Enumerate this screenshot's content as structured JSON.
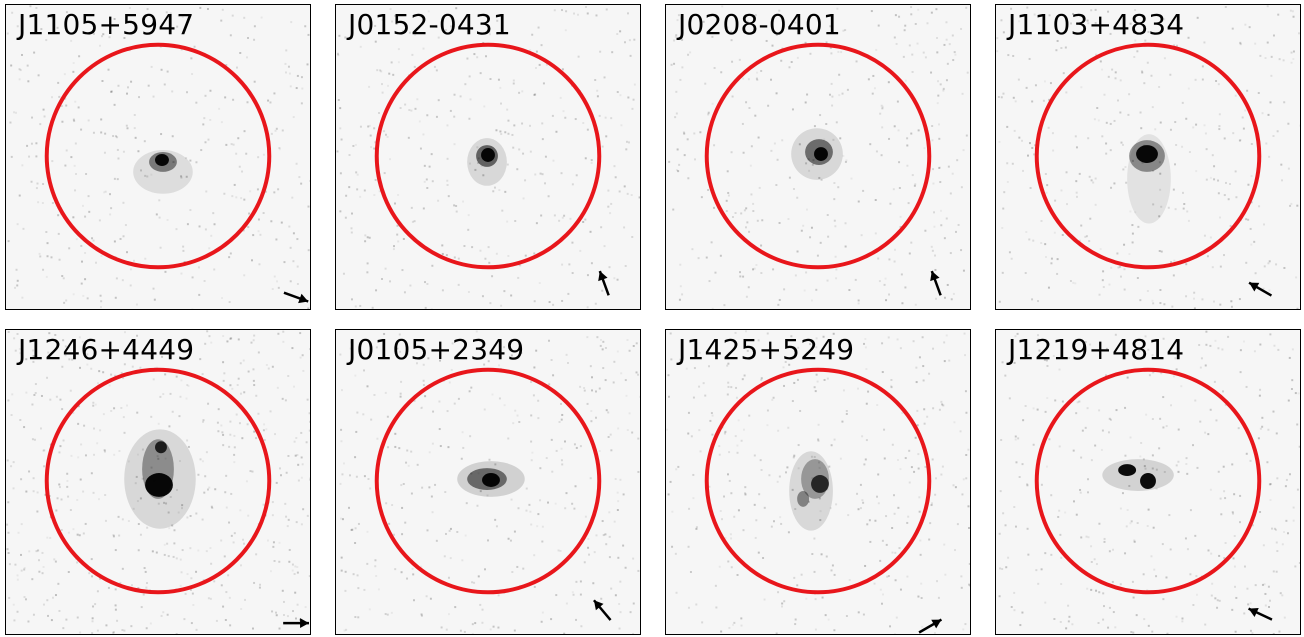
{
  "colors": {
    "aperture": "#e8161b",
    "frame": "#000000",
    "background": "#f6f6f6",
    "source": "#000000"
  },
  "panels": [
    {
      "label": "J1105+5947",
      "arrow_direction_deg": 340
    },
    {
      "label": "J0152-0431",
      "arrow_direction_deg": 110
    },
    {
      "label": "J0208-0401",
      "arrow_direction_deg": 110
    },
    {
      "label": "J1103+4834",
      "arrow_direction_deg": 150
    },
    {
      "label": "J1246+4449",
      "arrow_direction_deg": 0
    },
    {
      "label": "J0105+2349",
      "arrow_direction_deg": 130
    },
    {
      "label": "J1425+5249",
      "arrow_direction_deg": 30
    },
    {
      "label": "J1219+4814",
      "arrow_direction_deg": 155
    }
  ]
}
